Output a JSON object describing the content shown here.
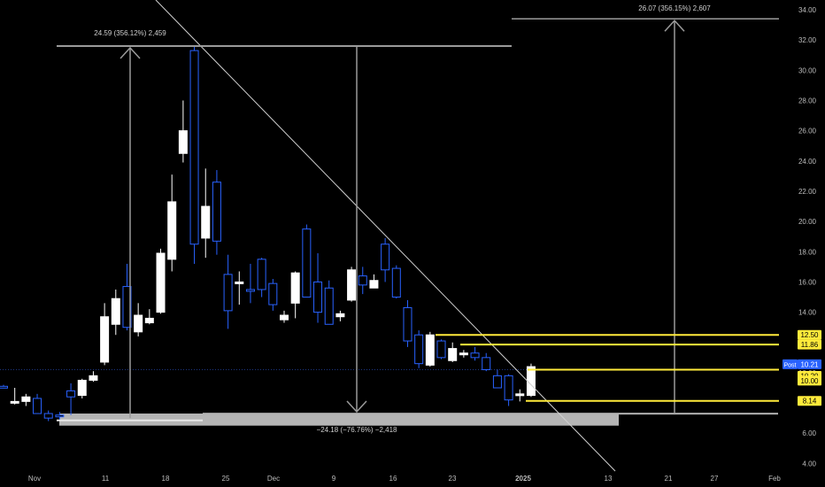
{
  "chart_data": {
    "type": "candlestick",
    "title": "",
    "ylim": [
      4,
      34
    ],
    "y_ticks": [
      "4.00",
      "6.00",
      "8.00",
      "10.00",
      "12.00",
      "14.00",
      "16.00",
      "18.00",
      "20.00",
      "22.00",
      "24.00",
      "26.00",
      "28.00",
      "30.00",
      "32.00",
      "34.00"
    ],
    "x_ticks": [
      "Nov",
      "11",
      "18",
      "25",
      "Dec",
      "9",
      "16",
      "23",
      "2025",
      "13",
      "21",
      "27",
      "Feb"
    ],
    "candles": [
      {
        "o": 9.1,
        "h": 9.2,
        "l": 9.0,
        "c": 9.0,
        "color": "blue"
      },
      {
        "o": 8.1,
        "h": 9.0,
        "l": 7.9,
        "c": 8.1,
        "color": "white"
      },
      {
        "o": 8.4,
        "h": 8.6,
        "l": 7.8,
        "c": 8.1,
        "color": "white"
      },
      {
        "o": 8.3,
        "h": 8.6,
        "l": 7.3,
        "c": 7.3,
        "color": "blue"
      },
      {
        "o": 7.3,
        "h": 7.5,
        "l": 6.8,
        "c": 7.0,
        "color": "blue"
      },
      {
        "o": 7.1,
        "h": 7.4,
        "l": 6.9,
        "c": 7.2,
        "color": "blue"
      },
      {
        "o": 8.4,
        "h": 9.3,
        "l": 7.2,
        "c": 8.8,
        "color": "blue"
      },
      {
        "o": 8.5,
        "h": 9.6,
        "l": 8.3,
        "c": 9.5,
        "color": "white"
      },
      {
        "o": 9.5,
        "h": 10.1,
        "l": 9.4,
        "c": 9.8,
        "color": "white"
      },
      {
        "o": 10.7,
        "h": 14.6,
        "l": 10.5,
        "c": 13.7,
        "color": "white"
      },
      {
        "o": 13.2,
        "h": 15.5,
        "l": 12.5,
        "c": 14.9,
        "color": "white"
      },
      {
        "o": 15.7,
        "h": 17.2,
        "l": 12.8,
        "c": 13.0,
        "color": "blue"
      },
      {
        "o": 12.7,
        "h": 14.6,
        "l": 12.4,
        "c": 13.8,
        "color": "white"
      },
      {
        "o": 13.3,
        "h": 14.2,
        "l": 13.2,
        "c": 13.6,
        "color": "white"
      },
      {
        "o": 14.0,
        "h": 18.2,
        "l": 13.9,
        "c": 17.9,
        "color": "white"
      },
      {
        "o": 17.5,
        "h": 23.1,
        "l": 16.7,
        "c": 21.3,
        "color": "white"
      },
      {
        "o": 24.5,
        "h": 28.0,
        "l": 23.9,
        "c": 26.0,
        "color": "white"
      },
      {
        "o": 31.3,
        "h": 31.6,
        "l": 17.2,
        "c": 18.5,
        "color": "blue"
      },
      {
        "o": 18.9,
        "h": 23.5,
        "l": 17.6,
        "c": 21.0,
        "color": "white"
      },
      {
        "o": 22.6,
        "h": 23.4,
        "l": 17.8,
        "c": 18.7,
        "color": "blue"
      },
      {
        "o": 16.5,
        "h": 17.8,
        "l": 12.9,
        "c": 14.1,
        "color": "blue"
      },
      {
        "o": 15.9,
        "h": 16.7,
        "l": 14.5,
        "c": 16.0,
        "color": "white"
      },
      {
        "o": 15.4,
        "h": 17.2,
        "l": 14.6,
        "c": 15.5,
        "color": "blue"
      },
      {
        "o": 17.5,
        "h": 17.6,
        "l": 15.0,
        "c": 15.5,
        "color": "blue"
      },
      {
        "o": 15.9,
        "h": 16.2,
        "l": 14.1,
        "c": 14.5,
        "color": "blue"
      },
      {
        "o": 13.5,
        "h": 14.1,
        "l": 13.3,
        "c": 13.8,
        "color": "white"
      },
      {
        "o": 16.6,
        "h": 16.7,
        "l": 13.6,
        "c": 14.6,
        "color": "white"
      },
      {
        "o": 19.5,
        "h": 19.8,
        "l": 15.2,
        "c": 15.0,
        "color": "blue"
      },
      {
        "o": 16.0,
        "h": 17.9,
        "l": 13.3,
        "c": 14.0,
        "color": "blue"
      },
      {
        "o": 15.6,
        "h": 16.1,
        "l": 13.3,
        "c": 13.2,
        "color": "blue"
      },
      {
        "o": 13.7,
        "h": 14.1,
        "l": 13.4,
        "c": 13.9,
        "color": "white"
      },
      {
        "o": 14.8,
        "h": 17.0,
        "l": 14.7,
        "c": 16.8,
        "color": "white"
      },
      {
        "o": 16.4,
        "h": 17.0,
        "l": 15.2,
        "c": 15.8,
        "color": "blue"
      },
      {
        "o": 16.1,
        "h": 16.5,
        "l": 15.6,
        "c": 15.6,
        "color": "white"
      },
      {
        "o": 18.5,
        "h": 18.9,
        "l": 16.0,
        "c": 16.8,
        "color": "blue"
      },
      {
        "o": 16.9,
        "h": 17.1,
        "l": 14.9,
        "c": 15.0,
        "color": "blue"
      },
      {
        "o": 14.3,
        "h": 14.8,
        "l": 11.7,
        "c": 12.1,
        "color": "blue"
      },
      {
        "o": 12.5,
        "h": 12.8,
        "l": 10.3,
        "c": 10.6,
        "color": "blue"
      },
      {
        "o": 10.5,
        "h": 12.7,
        "l": 10.4,
        "c": 12.5,
        "color": "white"
      },
      {
        "o": 12.1,
        "h": 12.2,
        "l": 10.9,
        "c": 11.0,
        "color": "blue"
      },
      {
        "o": 11.6,
        "h": 12.0,
        "l": 10.7,
        "c": 10.8,
        "color": "white"
      },
      {
        "o": 11.2,
        "h": 11.5,
        "l": 11.0,
        "c": 11.3,
        "color": "white"
      },
      {
        "o": 11.3,
        "h": 11.7,
        "l": 10.8,
        "c": 11.0,
        "color": "blue"
      },
      {
        "o": 11.0,
        "h": 11.3,
        "l": 10.1,
        "c": 10.2,
        "color": "blue"
      },
      {
        "o": 9.8,
        "h": 10.2,
        "l": 9.0,
        "c": 9.0,
        "color": "blue"
      },
      {
        "o": 9.8,
        "h": 9.9,
        "l": 7.8,
        "c": 8.2,
        "color": "blue"
      },
      {
        "o": 8.5,
        "h": 8.9,
        "l": 8.1,
        "c": 8.6,
        "color": "white"
      },
      {
        "o": 8.5,
        "h": 10.6,
        "l": 8.4,
        "c": 10.4,
        "color": "white"
      }
    ],
    "annotations": {
      "measure_up_1": "24.59 (356.12%) 2,459",
      "measure_down": "−24.18 (−76.76%) −2,418",
      "measure_up_2": "26.07 (356.15%) 2,607"
    },
    "levels": [
      {
        "value": 12.5,
        "label": "12.50",
        "color": "#ffeb3b"
      },
      {
        "value": 11.86,
        "label": "11.86",
        "color": "#ffeb3b"
      },
      {
        "value": 10.2,
        "label": "10.20",
        "color": "#ffeb3b"
      },
      {
        "value": 10.0,
        "label": "10.00",
        "color": "#ffeb3b"
      },
      {
        "value": 8.14,
        "label": "8.14",
        "color": "#ffeb3b"
      }
    ],
    "post_price": {
      "label": "Post",
      "value": "10.21",
      "color": "#2962ff"
    },
    "candle_colors": {
      "white": "#ffffff",
      "blue": "#2962ff"
    }
  }
}
